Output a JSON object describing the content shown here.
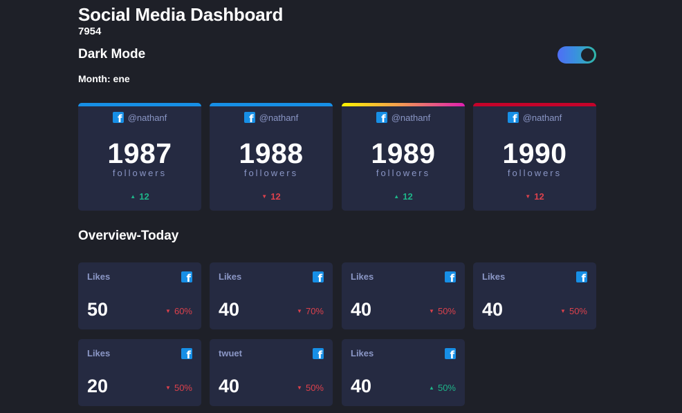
{
  "header": {
    "title": "Social Media Dashboard",
    "total": "7954",
    "mode_label": "Dark Mode",
    "month": "Month: ene"
  },
  "toggle": {
    "state": "on",
    "accent_colors": [
      "#4f6ef5",
      "#2fb8a8"
    ]
  },
  "followers": [
    {
      "handle": "@nathanf",
      "count": "1987",
      "label": "followers",
      "change": "12",
      "direction": "up",
      "icon": "facebook-icon",
      "bar": "#178fe6"
    },
    {
      "handle": "@nathanf",
      "count": "1988",
      "label": "followers",
      "change": "12",
      "direction": "down",
      "icon": "facebook-icon",
      "bar": "#178fe6"
    },
    {
      "handle": "@nathanf",
      "count": "1989",
      "label": "followers",
      "change": "12",
      "direction": "up",
      "icon": "facebook-icon",
      "bar": "gradient(#fdc468, #df4996)"
    },
    {
      "handle": "@nathanf",
      "count": "1990",
      "label": "followers",
      "change": "12",
      "direction": "down",
      "icon": "facebook-icon",
      "bar": "#c4032a"
    }
  ],
  "overview": {
    "title": "Overview-Today",
    "cards": [
      {
        "label": "Likes",
        "value": "50",
        "percent": "60%",
        "direction": "down",
        "icon": "facebook-icon"
      },
      {
        "label": "Likes",
        "value": "40",
        "percent": "70%",
        "direction": "down",
        "icon": "facebook-icon"
      },
      {
        "label": "Likes",
        "value": "40",
        "percent": "50%",
        "direction": "down",
        "icon": "facebook-icon"
      },
      {
        "label": "Likes",
        "value": "40",
        "percent": "50%",
        "direction": "down",
        "icon": "facebook-icon"
      },
      {
        "label": "Likes",
        "value": "20",
        "percent": "50%",
        "direction": "down",
        "icon": "facebook-icon"
      },
      {
        "label": "twuet",
        "value": "40",
        "percent": "50%",
        "direction": "down",
        "icon": "facebook-icon"
      },
      {
        "label": "Likes",
        "value": "40",
        "percent": "50%",
        "direction": "up",
        "icon": "facebook-icon"
      }
    ]
  },
  "colors": {
    "background": "#1e2028",
    "card": "#252a41",
    "up": "#1eb589",
    "down": "#dc414c",
    "muted": "#8b97c6"
  }
}
